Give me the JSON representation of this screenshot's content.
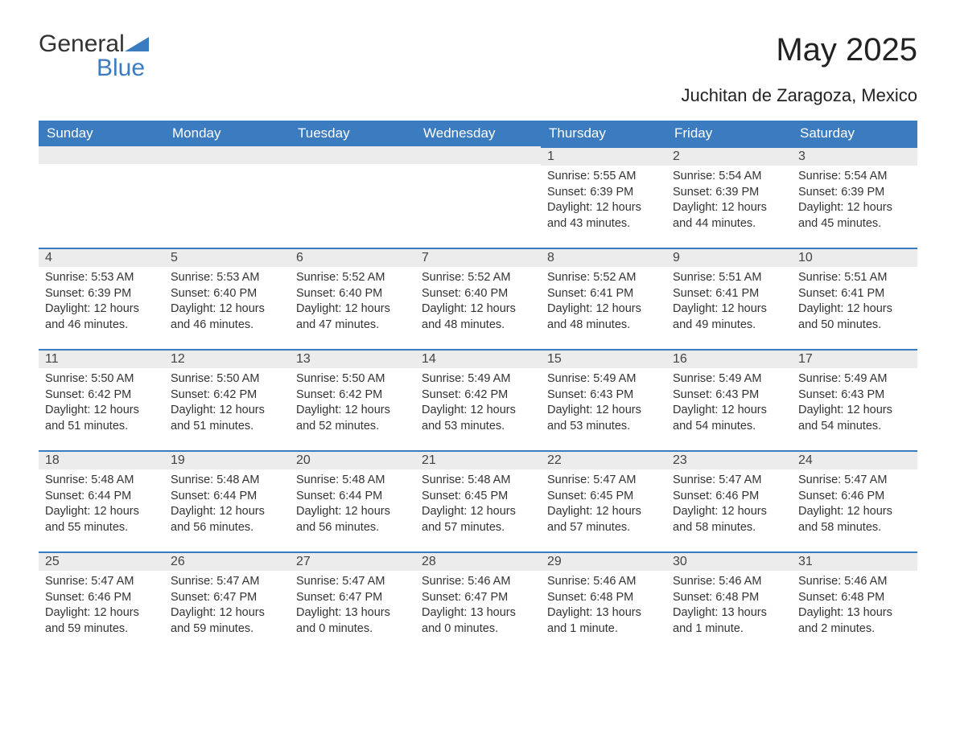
{
  "brand": {
    "name_part1": "General",
    "name_part2": "Blue"
  },
  "title": "May 2025",
  "subtitle": "Juchitan de Zaragoza, Mexico",
  "colors": {
    "header_bg": "#3b7bbf",
    "header_text": "#ffffff",
    "daynum_bg": "#ececec",
    "cell_border": "#3b7bbf",
    "body_text": "#333333",
    "page_bg": "#ffffff"
  },
  "day_headers": [
    "Sunday",
    "Monday",
    "Tuesday",
    "Wednesday",
    "Thursday",
    "Friday",
    "Saturday"
  ],
  "weeks": [
    [
      {
        "empty": true
      },
      {
        "empty": true
      },
      {
        "empty": true
      },
      {
        "empty": true
      },
      {
        "day": "1",
        "sunrise": "Sunrise: 5:55 AM",
        "sunset": "Sunset: 6:39 PM",
        "dl1": "Daylight: 12 hours",
        "dl2": "and 43 minutes."
      },
      {
        "day": "2",
        "sunrise": "Sunrise: 5:54 AM",
        "sunset": "Sunset: 6:39 PM",
        "dl1": "Daylight: 12 hours",
        "dl2": "and 44 minutes."
      },
      {
        "day": "3",
        "sunrise": "Sunrise: 5:54 AM",
        "sunset": "Sunset: 6:39 PM",
        "dl1": "Daylight: 12 hours",
        "dl2": "and 45 minutes."
      }
    ],
    [
      {
        "day": "4",
        "sunrise": "Sunrise: 5:53 AM",
        "sunset": "Sunset: 6:39 PM",
        "dl1": "Daylight: 12 hours",
        "dl2": "and 46 minutes."
      },
      {
        "day": "5",
        "sunrise": "Sunrise: 5:53 AM",
        "sunset": "Sunset: 6:40 PM",
        "dl1": "Daylight: 12 hours",
        "dl2": "and 46 minutes."
      },
      {
        "day": "6",
        "sunrise": "Sunrise: 5:52 AM",
        "sunset": "Sunset: 6:40 PM",
        "dl1": "Daylight: 12 hours",
        "dl2": "and 47 minutes."
      },
      {
        "day": "7",
        "sunrise": "Sunrise: 5:52 AM",
        "sunset": "Sunset: 6:40 PM",
        "dl1": "Daylight: 12 hours",
        "dl2": "and 48 minutes."
      },
      {
        "day": "8",
        "sunrise": "Sunrise: 5:52 AM",
        "sunset": "Sunset: 6:41 PM",
        "dl1": "Daylight: 12 hours",
        "dl2": "and 48 minutes."
      },
      {
        "day": "9",
        "sunrise": "Sunrise: 5:51 AM",
        "sunset": "Sunset: 6:41 PM",
        "dl1": "Daylight: 12 hours",
        "dl2": "and 49 minutes."
      },
      {
        "day": "10",
        "sunrise": "Sunrise: 5:51 AM",
        "sunset": "Sunset: 6:41 PM",
        "dl1": "Daylight: 12 hours",
        "dl2": "and 50 minutes."
      }
    ],
    [
      {
        "day": "11",
        "sunrise": "Sunrise: 5:50 AM",
        "sunset": "Sunset: 6:42 PM",
        "dl1": "Daylight: 12 hours",
        "dl2": "and 51 minutes."
      },
      {
        "day": "12",
        "sunrise": "Sunrise: 5:50 AM",
        "sunset": "Sunset: 6:42 PM",
        "dl1": "Daylight: 12 hours",
        "dl2": "and 51 minutes."
      },
      {
        "day": "13",
        "sunrise": "Sunrise: 5:50 AM",
        "sunset": "Sunset: 6:42 PM",
        "dl1": "Daylight: 12 hours",
        "dl2": "and 52 minutes."
      },
      {
        "day": "14",
        "sunrise": "Sunrise: 5:49 AM",
        "sunset": "Sunset: 6:42 PM",
        "dl1": "Daylight: 12 hours",
        "dl2": "and 53 minutes."
      },
      {
        "day": "15",
        "sunrise": "Sunrise: 5:49 AM",
        "sunset": "Sunset: 6:43 PM",
        "dl1": "Daylight: 12 hours",
        "dl2": "and 53 minutes."
      },
      {
        "day": "16",
        "sunrise": "Sunrise: 5:49 AM",
        "sunset": "Sunset: 6:43 PM",
        "dl1": "Daylight: 12 hours",
        "dl2": "and 54 minutes."
      },
      {
        "day": "17",
        "sunrise": "Sunrise: 5:49 AM",
        "sunset": "Sunset: 6:43 PM",
        "dl1": "Daylight: 12 hours",
        "dl2": "and 54 minutes."
      }
    ],
    [
      {
        "day": "18",
        "sunrise": "Sunrise: 5:48 AM",
        "sunset": "Sunset: 6:44 PM",
        "dl1": "Daylight: 12 hours",
        "dl2": "and 55 minutes."
      },
      {
        "day": "19",
        "sunrise": "Sunrise: 5:48 AM",
        "sunset": "Sunset: 6:44 PM",
        "dl1": "Daylight: 12 hours",
        "dl2": "and 56 minutes."
      },
      {
        "day": "20",
        "sunrise": "Sunrise: 5:48 AM",
        "sunset": "Sunset: 6:44 PM",
        "dl1": "Daylight: 12 hours",
        "dl2": "and 56 minutes."
      },
      {
        "day": "21",
        "sunrise": "Sunrise: 5:48 AM",
        "sunset": "Sunset: 6:45 PM",
        "dl1": "Daylight: 12 hours",
        "dl2": "and 57 minutes."
      },
      {
        "day": "22",
        "sunrise": "Sunrise: 5:47 AM",
        "sunset": "Sunset: 6:45 PM",
        "dl1": "Daylight: 12 hours",
        "dl2": "and 57 minutes."
      },
      {
        "day": "23",
        "sunrise": "Sunrise: 5:47 AM",
        "sunset": "Sunset: 6:46 PM",
        "dl1": "Daylight: 12 hours",
        "dl2": "and 58 minutes."
      },
      {
        "day": "24",
        "sunrise": "Sunrise: 5:47 AM",
        "sunset": "Sunset: 6:46 PM",
        "dl1": "Daylight: 12 hours",
        "dl2": "and 58 minutes."
      }
    ],
    [
      {
        "day": "25",
        "sunrise": "Sunrise: 5:47 AM",
        "sunset": "Sunset: 6:46 PM",
        "dl1": "Daylight: 12 hours",
        "dl2": "and 59 minutes."
      },
      {
        "day": "26",
        "sunrise": "Sunrise: 5:47 AM",
        "sunset": "Sunset: 6:47 PM",
        "dl1": "Daylight: 12 hours",
        "dl2": "and 59 minutes."
      },
      {
        "day": "27",
        "sunrise": "Sunrise: 5:47 AM",
        "sunset": "Sunset: 6:47 PM",
        "dl1": "Daylight: 13 hours",
        "dl2": "and 0 minutes."
      },
      {
        "day": "28",
        "sunrise": "Sunrise: 5:46 AM",
        "sunset": "Sunset: 6:47 PM",
        "dl1": "Daylight: 13 hours",
        "dl2": "and 0 minutes."
      },
      {
        "day": "29",
        "sunrise": "Sunrise: 5:46 AM",
        "sunset": "Sunset: 6:48 PM",
        "dl1": "Daylight: 13 hours",
        "dl2": "and 1 minute."
      },
      {
        "day": "30",
        "sunrise": "Sunrise: 5:46 AM",
        "sunset": "Sunset: 6:48 PM",
        "dl1": "Daylight: 13 hours",
        "dl2": "and 1 minute."
      },
      {
        "day": "31",
        "sunrise": "Sunrise: 5:46 AM",
        "sunset": "Sunset: 6:48 PM",
        "dl1": "Daylight: 13 hours",
        "dl2": "and 2 minutes."
      }
    ]
  ]
}
